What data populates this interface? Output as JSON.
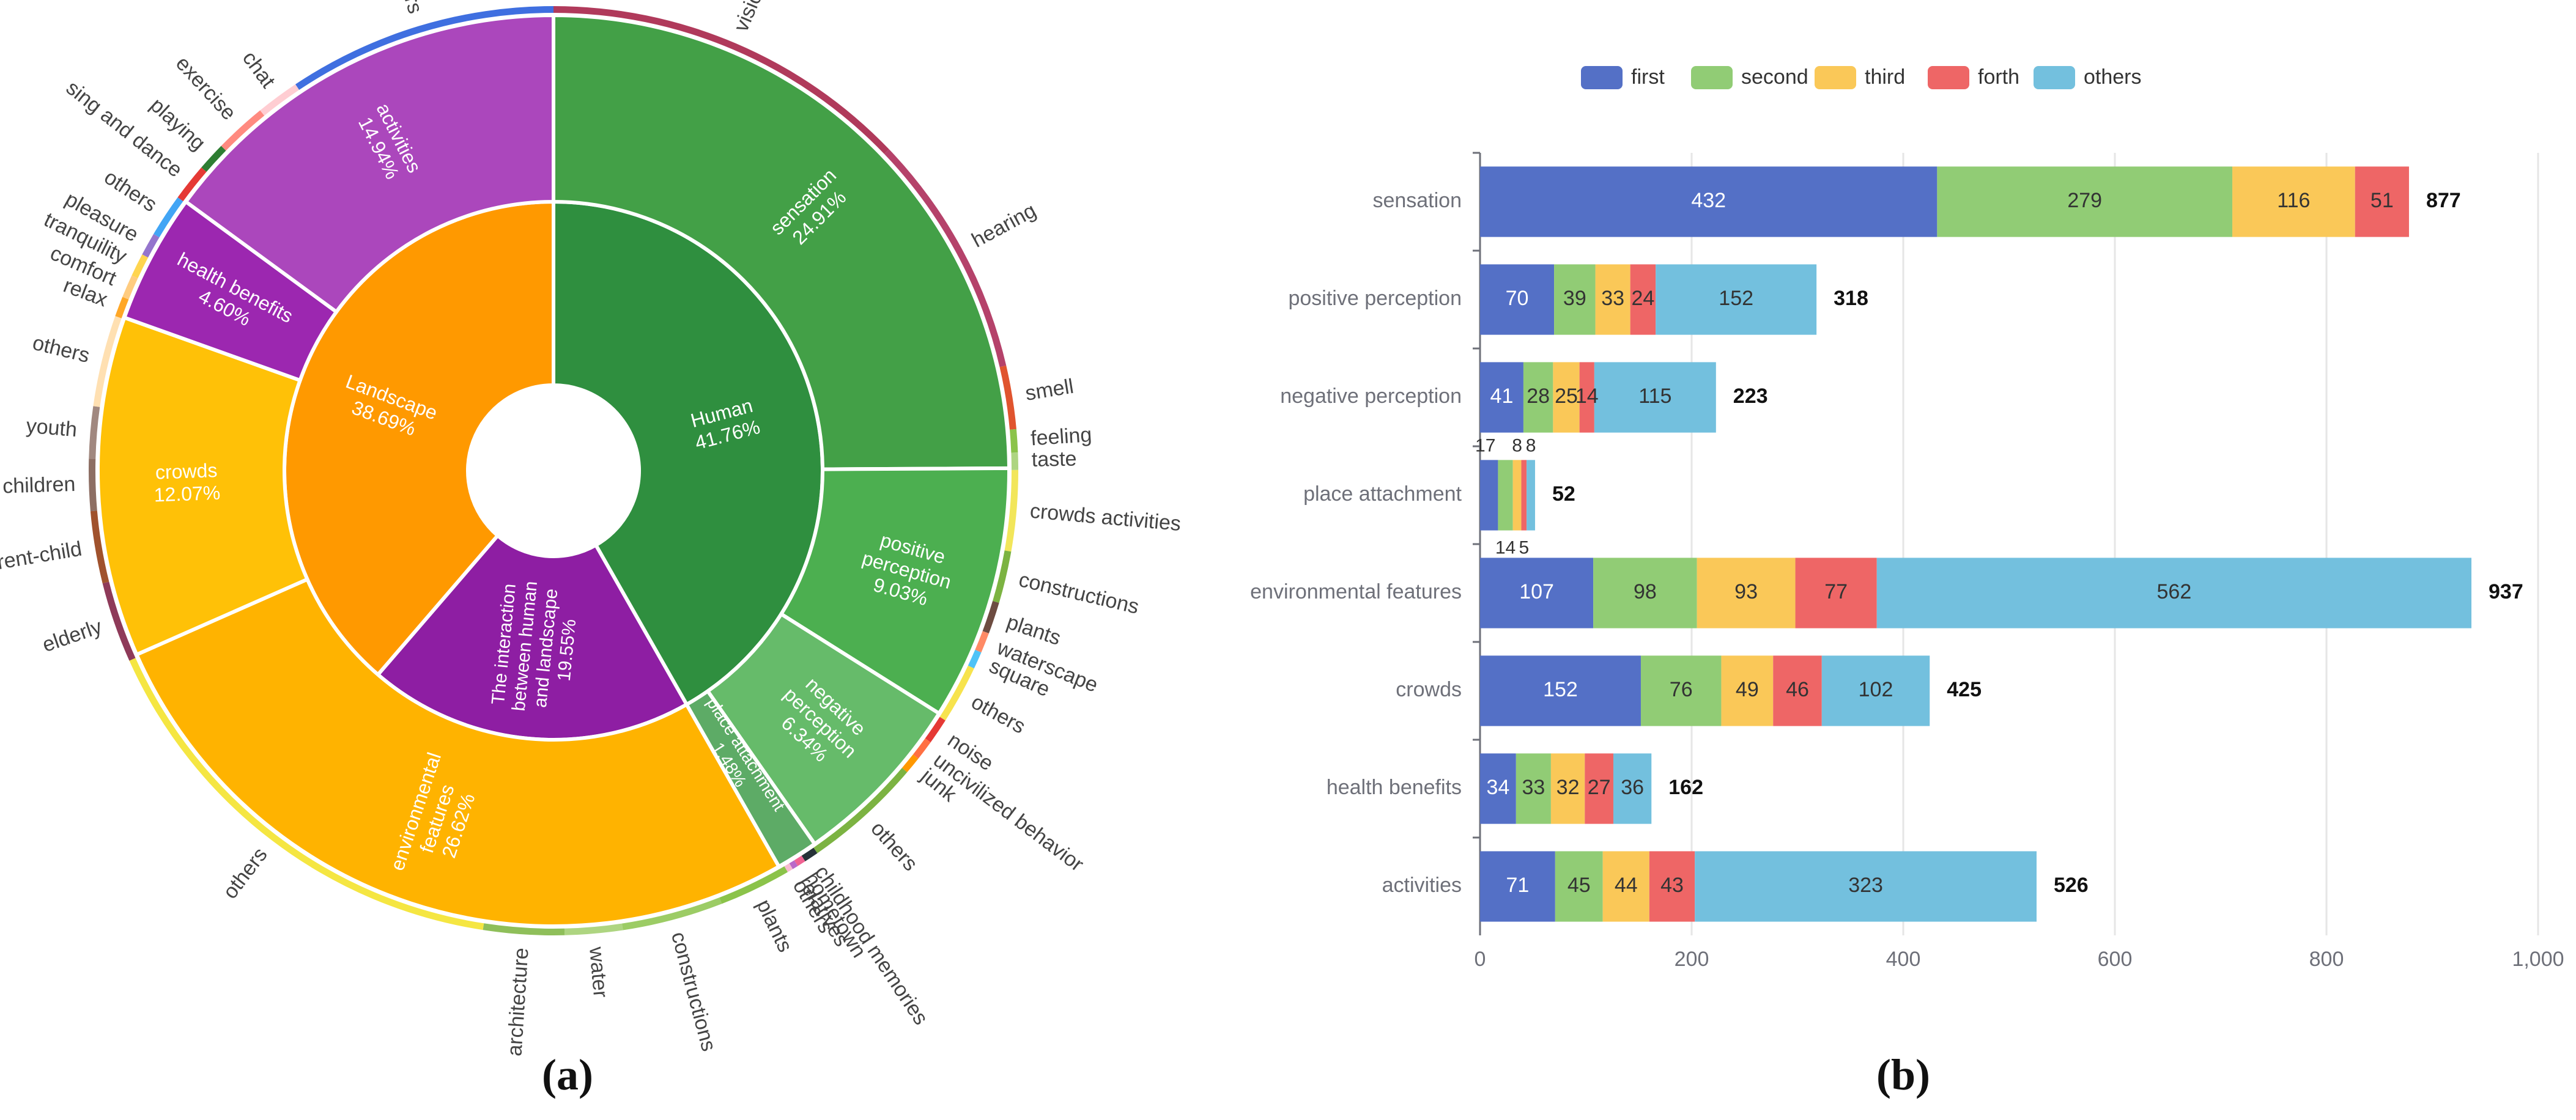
{
  "chart_data": [
    {
      "type": "sunburst",
      "panel_label": "(a)",
      "rings": {
        "inner": [
          {
            "label": "Human",
            "percent": "41.76%",
            "value": 41.76,
            "color": "#2f8f3f"
          },
          {
            "label": "The interaction between human and landscape",
            "percent": "19.55%",
            "value": 19.55,
            "color": "#8e1ea3"
          },
          {
            "label": "Landscape",
            "percent": "38.69%",
            "value": 38.69,
            "color": "#ff9900"
          }
        ],
        "middle": [
          {
            "label": "sensation",
            "percent": "24.91%",
            "value": 24.91,
            "color": "#43a047",
            "parent": "Human"
          },
          {
            "label": "positive perception",
            "percent": "9.03%",
            "value": 9.03,
            "color": "#4caf50",
            "parent": "Human"
          },
          {
            "label": "negative perception",
            "percent": "6.34%",
            "value": 6.34,
            "color": "#66bb6a",
            "parent": "Human"
          },
          {
            "label": "place attachment",
            "percent": "1.48%",
            "value": 1.48,
            "color": "#5dab66",
            "parent": "Human"
          },
          {
            "label": "environmental features",
            "percent": "26.62%",
            "value": 26.62,
            "color": "#ffb300",
            "parent": "Landscape"
          },
          {
            "label": "crowds",
            "percent": "12.07%",
            "value": 12.07,
            "color": "#ffc107",
            "parent": "Landscape"
          },
          {
            "label": "health benefits",
            "percent": "4.60%",
            "value": 4.6,
            "color": "#9c27b0",
            "parent": "The interaction between human and landscape"
          },
          {
            "label": "activities",
            "percent": "14.94%",
            "value": 14.94,
            "color": "#ab47bc",
            "parent": "The interaction between human and landscape"
          }
        ],
        "outer": [
          {
            "label": "vision",
            "value": 12.8,
            "color": "#b03a5b"
          },
          {
            "label": "hearing",
            "value": 8.5,
            "color": "#b5426a"
          },
          {
            "label": "smell",
            "value": 2.2,
            "color": "#e0542e"
          },
          {
            "label": "feeling",
            "value": 0.8,
            "color": "#8bc34a"
          },
          {
            "label": "taste",
            "value": 0.6,
            "color": "#aed581"
          },
          {
            "label": "crowds activities",
            "value": 2.8,
            "color": "#f2e65a"
          },
          {
            "label": "constructions",
            "value": 1.8,
            "color": "#7cb342"
          },
          {
            "label": "plants",
            "value": 1.1,
            "color": "#6d4c41"
          },
          {
            "label": "waterscape",
            "value": 0.7,
            "color": "#ff8a65"
          },
          {
            "label": "square",
            "value": 0.6,
            "color": "#4fc3f7"
          },
          {
            "label": "others",
            "value": 2.03,
            "color": "#f7e34d"
          },
          {
            "label": "noise",
            "value": 0.9,
            "color": "#e53935"
          },
          {
            "label": "uncivilized behavior",
            "value": 0.7,
            "color": "#ff7043"
          },
          {
            "label": "junk",
            "value": 0.6,
            "color": "#ff9800"
          },
          {
            "label": "others",
            "value": 4.14,
            "color": "#7cb342"
          },
          {
            "label": "childhood memories",
            "value": 0.5,
            "color": "#263238"
          },
          {
            "label": "hometown",
            "value": 0.3,
            "color": "#f06292"
          },
          {
            "label": "relatives",
            "value": 0.2,
            "color": "#ba68c8"
          },
          {
            "label": "others",
            "value": 0.2,
            "color": "#f8bbd0"
          },
          {
            "label": "plants",
            "value": 2.5,
            "color": "#8bc34a"
          },
          {
            "label": "constructions",
            "value": 3.5,
            "color": "#9ccc65"
          },
          {
            "label": "water",
            "value": 2.0,
            "color": "#aed581"
          },
          {
            "label": "architecture",
            "value": 2.8,
            "color": "#8fbf5a"
          },
          {
            "label": "others",
            "value": 15.82,
            "color": "#f5e642"
          },
          {
            "label": "elderly",
            "value": 2.8,
            "color": "#8e3a59"
          },
          {
            "label": "parent-child",
            "value": 2.5,
            "color": "#a0522d"
          },
          {
            "label": "children",
            "value": 1.8,
            "color": "#8d6e63"
          },
          {
            "label": "youth",
            "value": 1.8,
            "color": "#a1887f"
          },
          {
            "label": "others",
            "value": 3.17,
            "color": "#ffe0b2"
          },
          {
            "label": "relax",
            "value": 0.7,
            "color": "#ffa726"
          },
          {
            "label": "comfort",
            "value": 0.8,
            "color": "#ffcc80"
          },
          {
            "label": "tranquility",
            "value": 0.8,
            "color": "#ffd54f"
          },
          {
            "label": "pleasure",
            "value": 0.8,
            "color": "#9575cd"
          },
          {
            "label": "others",
            "value": 1.5,
            "color": "#42a5f5"
          },
          {
            "label": "sing and dance",
            "value": 1.3,
            "color": "#e53935"
          },
          {
            "label": "playing",
            "value": 1.0,
            "color": "#2e7d32"
          },
          {
            "label": "exercise",
            "value": 1.8,
            "color": "#ff8a80"
          },
          {
            "label": "chat",
            "value": 1.5,
            "color": "#ffcdd2"
          },
          {
            "label": "others",
            "value": 9.34,
            "color": "#3f6fe0"
          }
        ]
      }
    },
    {
      "type": "bar",
      "orientation": "horizontal",
      "stacked": true,
      "panel_label": "(b)",
      "legend_position": "top-center",
      "categories": [
        "sensation",
        "positive perception",
        "negative perception",
        "place attachment",
        "environmental features",
        "crowds",
        "health benefits",
        "activities"
      ],
      "series": [
        {
          "name": "first",
          "color": "#5470c6",
          "values": [
            432,
            70,
            41,
            17,
            107,
            152,
            34,
            71
          ]
        },
        {
          "name": "second",
          "color": "#91cc75",
          "values": [
            279,
            39,
            28,
            14,
            98,
            76,
            33,
            45
          ]
        },
        {
          "name": "third",
          "color": "#fac858",
          "values": [
            116,
            33,
            25,
            8,
            93,
            49,
            32,
            44
          ]
        },
        {
          "name": "forth",
          "color": "#ee6666",
          "values": [
            51,
            24,
            14,
            5,
            77,
            46,
            27,
            43
          ]
        },
        {
          "name": "others",
          "color": "#73c0de",
          "values": [
            0,
            152,
            115,
            8,
            562,
            102,
            36,
            323
          ]
        }
      ],
      "labels": [
        [
          "432",
          "279",
          "116",
          "51",
          ""
        ],
        [
          "70",
          "39",
          "33",
          "24",
          "152"
        ],
        [
          "41",
          "28",
          "25",
          "14",
          "115"
        ],
        [
          "17",
          "14",
          "8",
          "5",
          "8"
        ],
        [
          "107",
          "98",
          "93",
          "77",
          "562"
        ],
        [
          "152",
          "76",
          "49",
          "46",
          "102"
        ],
        [
          "34",
          "33",
          "32",
          "27",
          "36"
        ],
        [
          "71",
          "45",
          "44",
          "43",
          "323"
        ]
      ],
      "totals": [
        "877",
        "318",
        "223",
        "52",
        "937",
        "425",
        "162",
        "526"
      ],
      "xlim": [
        0,
        1000
      ],
      "xticks": [
        0,
        200,
        400,
        600,
        800,
        1000
      ],
      "xtick_labels": [
        "0",
        "200",
        "400",
        "600",
        "800",
        "1,000"
      ],
      "grid": true,
      "xlabel": "",
      "ylabel": ""
    }
  ]
}
